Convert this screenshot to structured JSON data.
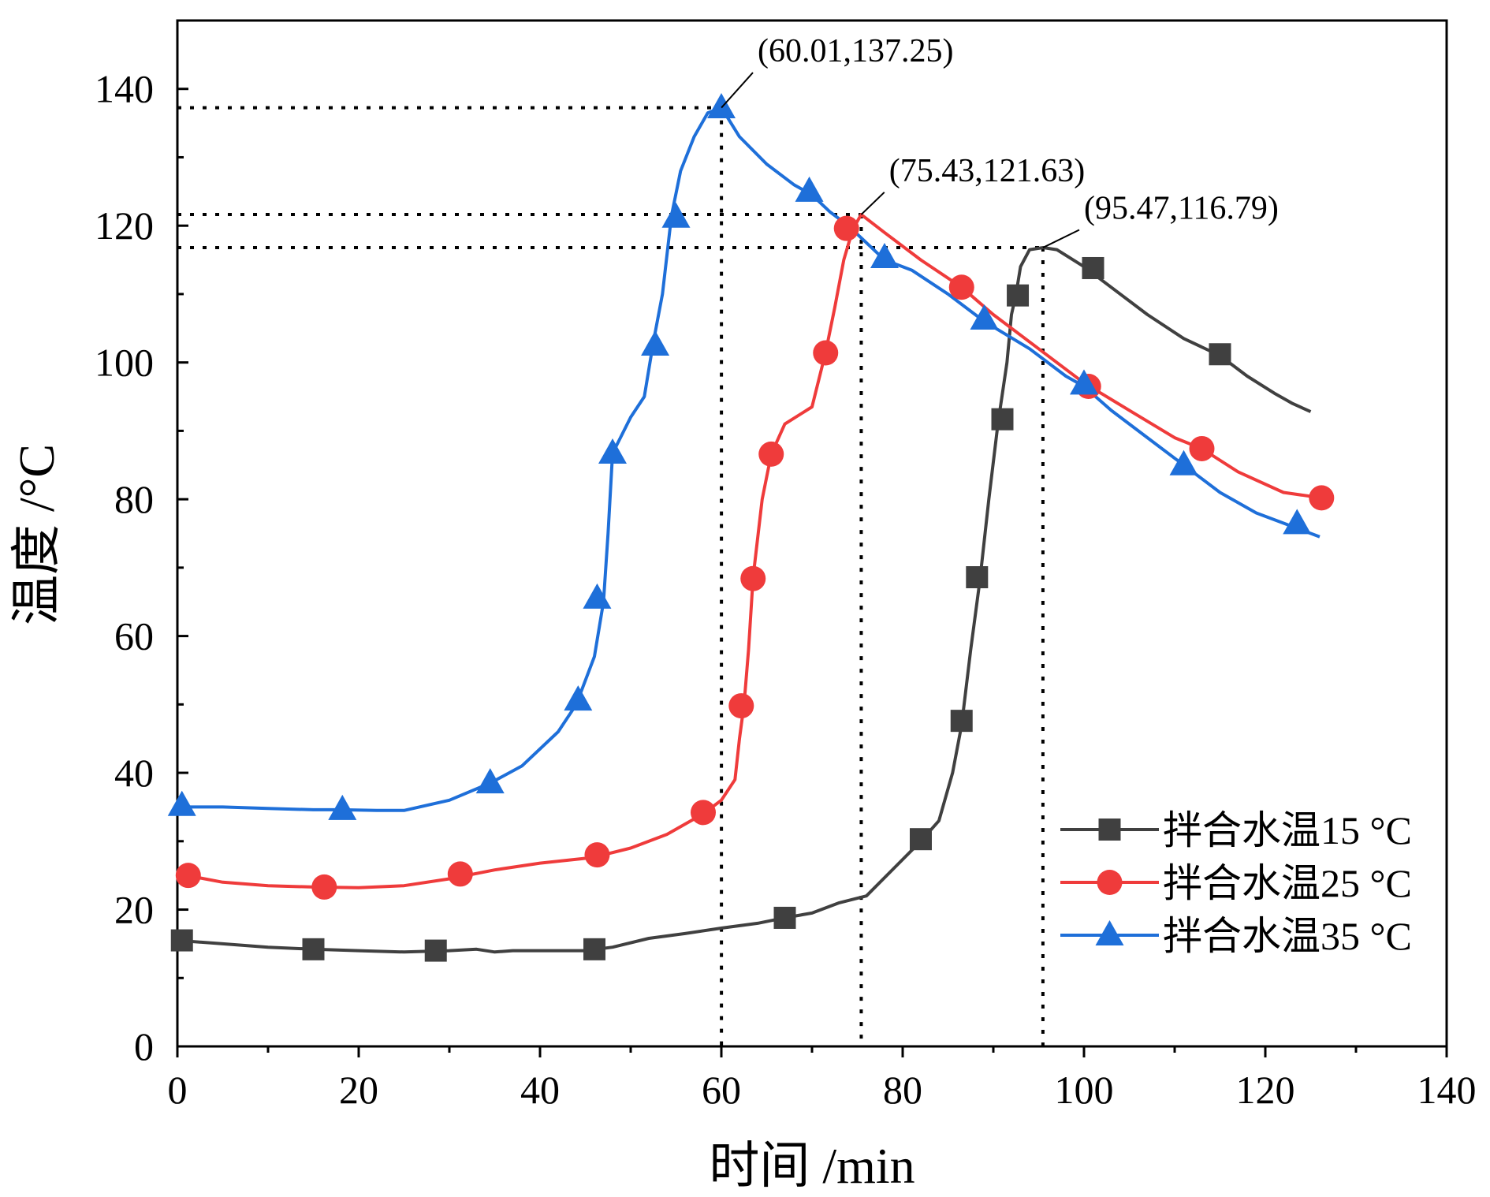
{
  "chart_data": {
    "type": "line",
    "xlabel": "时间 /min",
    "ylabel": "温度 /°C",
    "xlim": [
      0,
      140
    ],
    "ylim": [
      0,
      150
    ],
    "xticks": [
      0,
      20,
      40,
      60,
      80,
      100,
      120,
      140
    ],
    "yticks": [
      0,
      20,
      40,
      60,
      80,
      100,
      120,
      140
    ],
    "legend_position": "bottom-right",
    "grid": false,
    "series": [
      {
        "name": "拌合水温15 °C",
        "color": "#404040",
        "marker": "square",
        "line": [
          [
            0,
            15.5
          ],
          [
            5,
            15
          ],
          [
            10,
            14.5
          ],
          [
            15,
            14.2
          ],
          [
            20,
            14
          ],
          [
            25,
            13.8
          ],
          [
            30,
            14
          ],
          [
            33,
            14.2
          ],
          [
            35,
            13.8
          ],
          [
            37,
            14
          ],
          [
            40,
            14
          ],
          [
            45,
            14
          ],
          [
            48,
            14.5
          ],
          [
            52,
            15.8
          ],
          [
            56,
            16.5
          ],
          [
            60,
            17.3
          ],
          [
            64,
            18
          ],
          [
            67,
            18.8
          ],
          [
            70,
            19.5
          ],
          [
            73,
            21
          ],
          [
            76,
            22
          ],
          [
            79,
            26
          ],
          [
            82,
            30
          ],
          [
            84,
            33
          ],
          [
            85.5,
            40
          ],
          [
            86.5,
            47
          ],
          [
            87.5,
            58
          ],
          [
            88.5,
            68
          ],
          [
            89.5,
            80
          ],
          [
            90.5,
            91
          ],
          [
            91.5,
            100
          ],
          [
            92,
            107
          ],
          [
            92.5,
            110
          ],
          [
            93,
            114
          ],
          [
            94,
            116.5
          ],
          [
            95.5,
            116.8
          ],
          [
            97,
            116.5
          ],
          [
            100,
            114
          ],
          [
            103,
            111
          ],
          [
            107,
            107
          ],
          [
            111,
            103.5
          ],
          [
            115,
            101
          ],
          [
            118,
            98
          ],
          [
            121,
            95.5
          ],
          [
            123,
            94
          ],
          [
            125,
            92.8
          ]
        ],
        "markers": [
          [
            0.5,
            15.5
          ],
          [
            15,
            14.2
          ],
          [
            28.5,
            14
          ],
          [
            46,
            14.2
          ],
          [
            67,
            18.8
          ],
          [
            82,
            30.3
          ],
          [
            86.5,
            47.6
          ],
          [
            88.2,
            68.6
          ],
          [
            91,
            91.7
          ],
          [
            92.7,
            109.8
          ],
          [
            101,
            113.8
          ],
          [
            115,
            101.2
          ]
        ]
      },
      {
        "name": "拌合水温25 °C",
        "color": "#ef3b3b",
        "marker": "circle",
        "line": [
          [
            1,
            25
          ],
          [
            5,
            24
          ],
          [
            10,
            23.5
          ],
          [
            15,
            23.3
          ],
          [
            20,
            23.2
          ],
          [
            25,
            23.5
          ],
          [
            30,
            24.5
          ],
          [
            35,
            25.8
          ],
          [
            40,
            26.8
          ],
          [
            45,
            27.5
          ],
          [
            47,
            28
          ],
          [
            50,
            29
          ],
          [
            54,
            31
          ],
          [
            58,
            34
          ],
          [
            60,
            36
          ],
          [
            61.5,
            39
          ],
          [
            62,
            45
          ],
          [
            62.5,
            50
          ],
          [
            63,
            58
          ],
          [
            63.5,
            68.6
          ],
          [
            64.5,
            80
          ],
          [
            65.5,
            86.6
          ],
          [
            67,
            91
          ],
          [
            70,
            93.5
          ],
          [
            71.5,
            101.5
          ],
          [
            72.5,
            108
          ],
          [
            73.5,
            115
          ],
          [
            74.5,
            119.5
          ],
          [
            75.43,
            121.63
          ],
          [
            78,
            119
          ],
          [
            82,
            115
          ],
          [
            86.5,
            111
          ],
          [
            90,
            107
          ],
          [
            95,
            102
          ],
          [
            100,
            97
          ],
          [
            105,
            93
          ],
          [
            110,
            89
          ],
          [
            113,
            87.4
          ],
          [
            117,
            84
          ],
          [
            122,
            81
          ],
          [
            126.2,
            80.2
          ]
        ],
        "markers": [
          [
            1.2,
            25
          ],
          [
            16.2,
            23.3
          ],
          [
            31.2,
            25.2
          ],
          [
            46.3,
            28
          ],
          [
            58,
            34.2
          ],
          [
            62.2,
            49.8
          ],
          [
            63.5,
            68.4
          ],
          [
            65.5,
            86.6
          ],
          [
            71.5,
            101.4
          ],
          [
            73.8,
            119.6
          ],
          [
            86.5,
            111
          ],
          [
            100.5,
            96.5
          ],
          [
            113,
            87.4
          ],
          [
            126.2,
            80.2
          ]
        ]
      },
      {
        "name": "拌合水温35 °C",
        "color": "#1e6fd9",
        "marker": "triangle",
        "line": [
          [
            0,
            35
          ],
          [
            5,
            35
          ],
          [
            10,
            34.8
          ],
          [
            15,
            34.6
          ],
          [
            18,
            34.6
          ],
          [
            22,
            34.5
          ],
          [
            25,
            34.5
          ],
          [
            30,
            36
          ],
          [
            34.5,
            38.5
          ],
          [
            38,
            41
          ],
          [
            42,
            46
          ],
          [
            44,
            50
          ],
          [
            46,
            57
          ],
          [
            47,
            65
          ],
          [
            47.5,
            75
          ],
          [
            48,
            86.7
          ],
          [
            50,
            92
          ],
          [
            51.5,
            95
          ],
          [
            52.5,
            103
          ],
          [
            53.5,
            110
          ],
          [
            54.5,
            121.5
          ],
          [
            55.5,
            128
          ],
          [
            57,
            133
          ],
          [
            58.5,
            136.5
          ],
          [
            60.01,
            137.25
          ],
          [
            62,
            133
          ],
          [
            65,
            129
          ],
          [
            68,
            126
          ],
          [
            70,
            124.5
          ],
          [
            72,
            122
          ],
          [
            74,
            120
          ],
          [
            78,
            115
          ],
          [
            81,
            113.5
          ],
          [
            85,
            110
          ],
          [
            89,
            106
          ],
          [
            94,
            102
          ],
          [
            98,
            98
          ],
          [
            100,
            96.5
          ],
          [
            103,
            93
          ],
          [
            107,
            89
          ],
          [
            111,
            85
          ],
          [
            115,
            81
          ],
          [
            119,
            78
          ],
          [
            123,
            76
          ],
          [
            126,
            74.5
          ]
        ],
        "markers": [
          [
            0.5,
            35.2
          ],
          [
            18.2,
            34.6
          ],
          [
            34.5,
            38.5
          ],
          [
            44.2,
            50.6
          ],
          [
            46.3,
            65.5
          ],
          [
            48,
            86.7
          ],
          [
            52.7,
            102.5
          ],
          [
            55,
            121.2
          ],
          [
            60,
            137.2
          ],
          [
            69.7,
            125
          ],
          [
            78,
            115.3
          ],
          [
            89,
            106.3
          ],
          [
            100,
            96.8
          ],
          [
            111,
            85
          ],
          [
            123.5,
            76.4
          ]
        ]
      }
    ],
    "annotations": [
      {
        "text": "(60.01,137.25)",
        "point": [
          60.01,
          137.25
        ],
        "label_at": [
          64,
          144
        ]
      },
      {
        "text": "(75.43,121.63)",
        "point": [
          75.43,
          121.63
        ],
        "label_at": [
          78.5,
          126.5
        ]
      },
      {
        "text": "(95.47,116.79)",
        "point": [
          95.47,
          116.79
        ],
        "label_at": [
          100,
          121
        ]
      }
    ]
  }
}
